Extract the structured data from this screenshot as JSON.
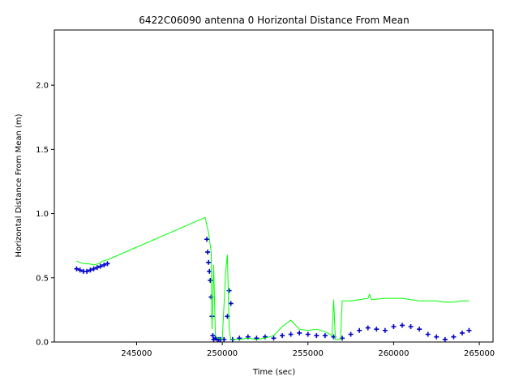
{
  "chart_data": {
    "type": "scatter",
    "title": "6422C06090 antenna 0 Horizontal Distance From Mean",
    "xlabel": "Time (sec)",
    "ylabel": "Horizontal Distance From Mean (m)",
    "xlim": [
      240200,
      265800
    ],
    "ylim": [
      0.0,
      2.43
    ],
    "xticks": [
      {
        "value": 245000,
        "label": "245000"
      },
      {
        "value": 250000,
        "label": "250000"
      },
      {
        "value": 255000,
        "label": "255000"
      },
      {
        "value": 260000,
        "label": "260000"
      },
      {
        "value": 265000,
        "label": "265000"
      }
    ],
    "yticks": [
      {
        "value": 0.0,
        "label": "0.0"
      },
      {
        "value": 0.5,
        "label": "0.5"
      },
      {
        "value": 1.0,
        "label": "1.0"
      },
      {
        "value": 1.5,
        "label": "1.5"
      },
      {
        "value": 2.0,
        "label": "2.0"
      }
    ],
    "grid": false,
    "colors": {
      "blue_series": "#0000cc",
      "green_series": "#00ff00"
    },
    "series": [
      {
        "color": "#0000cc",
        "marker": "plus",
        "points": [
          [
            241500,
            0.57
          ],
          [
            241700,
            0.56
          ],
          [
            241900,
            0.55
          ],
          [
            242100,
            0.55
          ],
          [
            242300,
            0.56
          ],
          [
            242500,
            0.57
          ],
          [
            242700,
            0.58
          ],
          [
            242900,
            0.59
          ],
          [
            243100,
            0.6
          ],
          [
            243300,
            0.61
          ],
          [
            249100,
            0.8
          ],
          [
            249150,
            0.7
          ],
          [
            249200,
            0.62
          ],
          [
            249250,
            0.55
          ],
          [
            249300,
            0.48
          ],
          [
            249350,
            0.35
          ],
          [
            249400,
            0.2
          ],
          [
            249450,
            0.05
          ],
          [
            249500,
            0.02
          ],
          [
            249600,
            0.03
          ],
          [
            249700,
            0.02
          ],
          [
            249800,
            0.02
          ],
          [
            249900,
            0.02
          ],
          [
            250100,
            0.02
          ],
          [
            250300,
            0.2
          ],
          [
            250400,
            0.4
          ],
          [
            250500,
            0.3
          ],
          [
            250600,
            0.02
          ],
          [
            251000,
            0.03
          ],
          [
            251500,
            0.04
          ],
          [
            252000,
            0.03
          ],
          [
            252500,
            0.04
          ],
          [
            253000,
            0.03
          ],
          [
            253500,
            0.05
          ],
          [
            254000,
            0.06
          ],
          [
            254500,
            0.07
          ],
          [
            255000,
            0.06
          ],
          [
            255500,
            0.05
          ],
          [
            256000,
            0.05
          ],
          [
            256500,
            0.04
          ],
          [
            257000,
            0.03
          ],
          [
            257500,
            0.06
          ],
          [
            258000,
            0.09
          ],
          [
            258500,
            0.11
          ],
          [
            259000,
            0.1
          ],
          [
            259500,
            0.09
          ],
          [
            260000,
            0.12
          ],
          [
            260500,
            0.13
          ],
          [
            261000,
            0.12
          ],
          [
            261500,
            0.1
          ],
          [
            262000,
            0.06
          ],
          [
            262500,
            0.04
          ],
          [
            263000,
            0.02
          ],
          [
            263500,
            0.04
          ],
          [
            264000,
            0.07
          ],
          [
            264400,
            0.09
          ]
        ]
      },
      {
        "color": "#00ff00",
        "marker": "line",
        "points": [
          [
            241500,
            0.63
          ],
          [
            241700,
            0.62
          ],
          [
            241900,
            0.61
          ],
          [
            242200,
            0.61
          ],
          [
            242500,
            0.6
          ],
          [
            242800,
            0.61
          ],
          [
            243000,
            0.63
          ],
          [
            243300,
            0.64
          ],
          [
            249000,
            0.97
          ],
          [
            249200,
            0.85
          ],
          [
            249350,
            0.7
          ],
          [
            249400,
            0.1
          ],
          [
            249500,
            0.6
          ],
          [
            249600,
            0.05
          ],
          [
            249700,
            0.03
          ],
          [
            249800,
            0.03
          ],
          [
            250000,
            0.02
          ],
          [
            250200,
            0.55
          ],
          [
            250300,
            0.68
          ],
          [
            250400,
            0.1
          ],
          [
            250500,
            0.02
          ],
          [
            251000,
            0.02
          ],
          [
            251500,
            0.03
          ],
          [
            252000,
            0.02
          ],
          [
            252500,
            0.03
          ],
          [
            253000,
            0.05
          ],
          [
            253500,
            0.12
          ],
          [
            254000,
            0.17
          ],
          [
            254500,
            0.1
          ],
          [
            255000,
            0.09
          ],
          [
            255500,
            0.1
          ],
          [
            256000,
            0.08
          ],
          [
            256400,
            0.05
          ],
          [
            256500,
            0.33
          ],
          [
            256600,
            0.02
          ],
          [
            256900,
            0.02
          ],
          [
            257000,
            0.32
          ],
          [
            257500,
            0.32
          ],
          [
            258000,
            0.33
          ],
          [
            258500,
            0.34
          ],
          [
            258600,
            0.37
          ],
          [
            258700,
            0.33
          ],
          [
            259500,
            0.34
          ],
          [
            260000,
            0.34
          ],
          [
            260500,
            0.34
          ],
          [
            261000,
            0.33
          ],
          [
            261500,
            0.32
          ],
          [
            262000,
            0.32
          ],
          [
            262500,
            0.32
          ],
          [
            263000,
            0.31
          ],
          [
            263500,
            0.31
          ],
          [
            264000,
            0.32
          ],
          [
            264400,
            0.32
          ]
        ]
      }
    ]
  }
}
